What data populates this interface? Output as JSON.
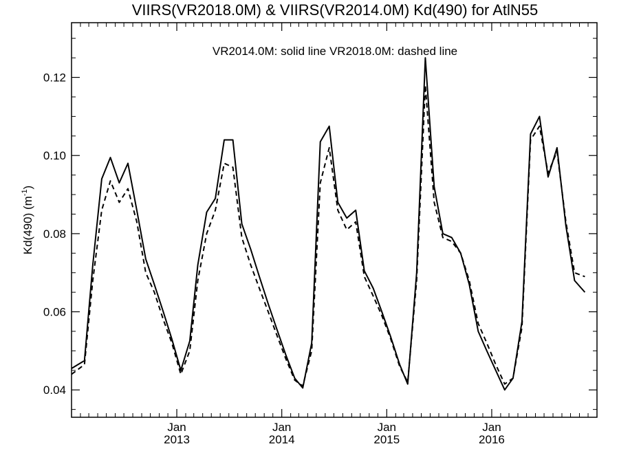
{
  "chart_data": {
    "type": "line",
    "title": "VIIRS(VR2018.0M) & VIIRS(VR2014.0M)  Kd(490) for AtlN55",
    "ylabel": "Kd(490) (m",
    "ylabel_sup": "-1",
    "ylabel_close": ")",
    "annotation": "VR2014.0M: solid line   VR2018.0M: dashed line",
    "ylim": [
      0.033,
      0.134
    ],
    "xlim": [
      "2012-01-01",
      "2016-12-31"
    ],
    "yticks": [
      {
        "value": 0.04,
        "label": "0.04"
      },
      {
        "value": 0.06,
        "label": "0.06"
      },
      {
        "value": 0.08,
        "label": "0.08"
      },
      {
        "value": 0.1,
        "label": "0.10"
      },
      {
        "value": 0.12,
        "label": "0.12"
      }
    ],
    "xticks": [
      {
        "date": "2013-01-01",
        "month": "Jan",
        "year": "2013"
      },
      {
        "date": "2014-01-01",
        "month": "Jan",
        "year": "2014"
      },
      {
        "date": "2015-01-01",
        "month": "Jan",
        "year": "2015"
      },
      {
        "date": "2016-01-01",
        "month": "Jan",
        "year": "2016"
      }
    ],
    "grid": false,
    "series": [
      {
        "name": "VR2014.0M",
        "style": "solid",
        "color": "#000000",
        "points": [
          [
            "2012-01-01",
            0.0455
          ],
          [
            "2012-02-15",
            0.0475
          ],
          [
            "2012-03-15",
            0.072
          ],
          [
            "2012-04-15",
            0.094
          ],
          [
            "2012-05-15",
            0.0995
          ],
          [
            "2012-06-15",
            0.093
          ],
          [
            "2012-07-15",
            0.098
          ],
          [
            "2012-08-15",
            0.086
          ],
          [
            "2012-09-15",
            0.0735
          ],
          [
            "2012-10-15",
            0.067
          ],
          [
            "2012-11-15",
            0.06
          ],
          [
            "2012-12-15",
            0.053
          ],
          [
            "2013-01-15",
            0.045
          ],
          [
            "2013-02-15",
            0.0525
          ],
          [
            "2013-03-15",
            0.072
          ],
          [
            "2013-04-15",
            0.0855
          ],
          [
            "2013-05-15",
            0.089
          ],
          [
            "2013-06-15",
            0.104
          ],
          [
            "2013-07-15",
            0.104
          ],
          [
            "2013-08-15",
            0.0825
          ],
          [
            "2013-09-15",
            0.076
          ],
          [
            "2013-10-15",
            0.069
          ],
          [
            "2013-11-15",
            0.062
          ],
          [
            "2013-12-15",
            0.0555
          ],
          [
            "2014-01-15",
            0.049
          ],
          [
            "2014-02-15",
            0.043
          ],
          [
            "2014-03-15",
            0.0405
          ],
          [
            "2014-04-15",
            0.052
          ],
          [
            "2014-05-15",
            0.1035
          ],
          [
            "2014-06-15",
            0.1075
          ],
          [
            "2014-07-15",
            0.088
          ],
          [
            "2014-08-15",
            0.084
          ],
          [
            "2014-09-15",
            0.086
          ],
          [
            "2014-10-15",
            0.0705
          ],
          [
            "2014-11-15",
            0.066
          ],
          [
            "2014-12-15",
            0.06
          ],
          [
            "2015-01-15",
            0.0535
          ],
          [
            "2015-02-15",
            0.0465
          ],
          [
            "2015-03-15",
            0.0415
          ],
          [
            "2015-04-15",
            0.07
          ],
          [
            "2015-05-15",
            0.125
          ],
          [
            "2015-06-15",
            0.092
          ],
          [
            "2015-07-15",
            0.08
          ],
          [
            "2015-08-15",
            0.079
          ],
          [
            "2015-09-15",
            0.075
          ],
          [
            "2015-10-15",
            0.067
          ],
          [
            "2015-11-15",
            0.055
          ],
          [
            "2015-12-15",
            0.05
          ],
          [
            "2016-01-15",
            0.045
          ],
          [
            "2016-02-15",
            0.04
          ],
          [
            "2016-03-15",
            0.043
          ],
          [
            "2016-04-15",
            0.0575
          ],
          [
            "2016-05-15",
            0.1055
          ],
          [
            "2016-06-15",
            0.11
          ],
          [
            "2016-07-15",
            0.0945
          ],
          [
            "2016-08-15",
            0.102
          ],
          [
            "2016-09-15",
            0.082
          ],
          [
            "2016-10-15",
            0.068
          ],
          [
            "2016-11-20",
            0.065
          ]
        ]
      },
      {
        "name": "VR2018.0M",
        "style": "dashed",
        "color": "#000000",
        "points": [
          [
            "2012-01-01",
            0.044
          ],
          [
            "2012-02-15",
            0.0465
          ],
          [
            "2012-03-15",
            0.068
          ],
          [
            "2012-04-15",
            0.086
          ],
          [
            "2012-05-15",
            0.0935
          ],
          [
            "2012-06-15",
            0.088
          ],
          [
            "2012-07-15",
            0.0915
          ],
          [
            "2012-08-15",
            0.083
          ],
          [
            "2012-09-15",
            0.07
          ],
          [
            "2012-10-15",
            0.065
          ],
          [
            "2012-11-15",
            0.058
          ],
          [
            "2012-12-15",
            0.052
          ],
          [
            "2013-01-15",
            0.044
          ],
          [
            "2013-02-15",
            0.05
          ],
          [
            "2013-03-15",
            0.068
          ],
          [
            "2013-04-15",
            0.08
          ],
          [
            "2013-05-15",
            0.086
          ],
          [
            "2013-06-15",
            0.098
          ],
          [
            "2013-07-15",
            0.097
          ],
          [
            "2013-08-15",
            0.079
          ],
          [
            "2013-09-15",
            0.072
          ],
          [
            "2013-10-15",
            0.066
          ],
          [
            "2013-11-15",
            0.06
          ],
          [
            "2013-12-15",
            0.054
          ],
          [
            "2014-01-15",
            0.048
          ],
          [
            "2014-02-15",
            0.0425
          ],
          [
            "2014-03-15",
            0.041
          ],
          [
            "2014-04-15",
            0.05
          ],
          [
            "2014-05-15",
            0.093
          ],
          [
            "2014-06-15",
            0.102
          ],
          [
            "2014-07-15",
            0.086
          ],
          [
            "2014-08-15",
            0.081
          ],
          [
            "2014-09-15",
            0.083
          ],
          [
            "2014-10-15",
            0.069
          ],
          [
            "2014-11-15",
            0.064
          ],
          [
            "2014-12-15",
            0.059
          ],
          [
            "2015-01-15",
            0.053
          ],
          [
            "2015-02-15",
            0.046
          ],
          [
            "2015-03-15",
            0.042
          ],
          [
            "2015-04-15",
            0.068
          ],
          [
            "2015-05-15",
            0.118
          ],
          [
            "2015-06-15",
            0.088
          ],
          [
            "2015-07-15",
            0.079
          ],
          [
            "2015-08-15",
            0.078
          ],
          [
            "2015-09-15",
            0.075
          ],
          [
            "2015-10-15",
            0.068
          ],
          [
            "2015-11-15",
            0.057
          ],
          [
            "2015-12-15",
            0.052
          ],
          [
            "2016-01-15",
            0.0465
          ],
          [
            "2016-02-15",
            0.0415
          ],
          [
            "2016-03-15",
            0.043
          ],
          [
            "2016-04-15",
            0.056
          ],
          [
            "2016-05-15",
            0.104
          ],
          [
            "2016-06-15",
            0.1075
          ],
          [
            "2016-07-15",
            0.0955
          ],
          [
            "2016-08-15",
            0.101
          ],
          [
            "2016-09-15",
            0.083
          ],
          [
            "2016-10-15",
            0.07
          ],
          [
            "2016-11-20",
            0.069
          ]
        ]
      }
    ]
  }
}
